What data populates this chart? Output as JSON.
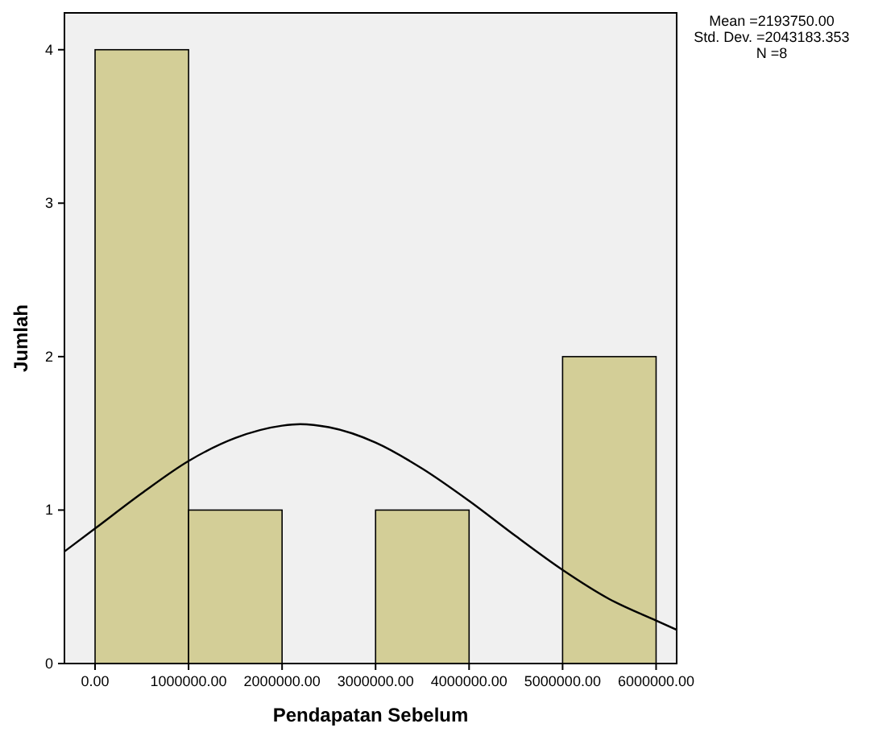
{
  "chart_data": {
    "type": "histogram",
    "xlabel": "Pendapatan Sebelum",
    "ylabel": "Jumlah",
    "annotations": [
      "Mean =2193750.00",
      "Std. Dev. =2043183.353",
      "N =8"
    ],
    "bins": [
      0,
      1000000,
      2000000,
      3000000,
      4000000,
      5000000,
      6000000
    ],
    "series": [
      {
        "color": "#d3ce97",
        "values": [
          4,
          1,
          0,
          1,
          0,
          2
        ]
      },
      {
        "type": "line",
        "color": "#000000",
        "x": [
          -327586,
          0,
          500000,
          1000000,
          1500000,
          2000000,
          2193750,
          2500000,
          3000000,
          3500000,
          4000000,
          4500000,
          5000000,
          5500000,
          6000000,
          6220000
        ],
        "values": [
          0.73,
          0.88,
          1.11,
          1.32,
          1.47,
          1.55,
          1.56,
          1.54,
          1.44,
          1.27,
          1.06,
          0.83,
          0.61,
          0.42,
          0.28,
          0.22
        ]
      }
    ],
    "xlim": [
      -327586,
      6220000
    ],
    "ylim": [
      0,
      4.24
    ],
    "xticks": [
      {
        "value": 0,
        "label": "0.00"
      },
      {
        "value": 1000000,
        "label": "1000000.00"
      },
      {
        "value": 2000000,
        "label": "2000000.00"
      },
      {
        "value": 3000000,
        "label": "3000000.00"
      },
      {
        "value": 4000000,
        "label": "4000000.00"
      },
      {
        "value": 5000000,
        "label": "5000000.00"
      },
      {
        "value": 6000000,
        "label": "6000000.00"
      }
    ],
    "yticks": [
      0,
      1,
      2,
      3,
      4
    ],
    "grid": false
  }
}
